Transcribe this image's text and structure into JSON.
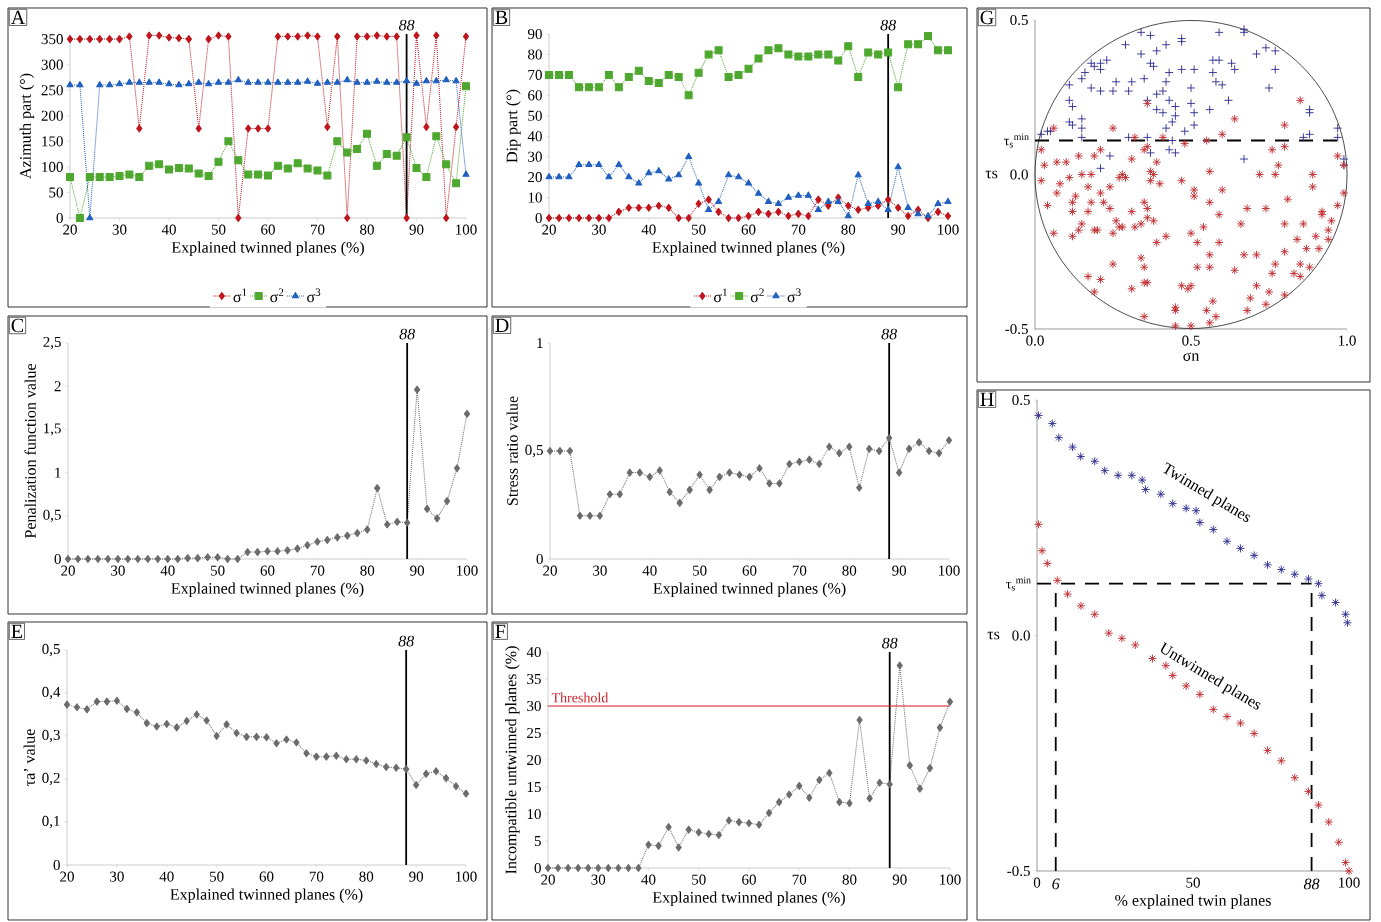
{
  "chart_data": [
    {
      "type": "line",
      "title": "A",
      "xlabel": "Explained twinned planes (%)",
      "ylabel": "Azimuth part (°)",
      "x": [
        20,
        22,
        24,
        26,
        28,
        30,
        32,
        34,
        36,
        38,
        40,
        42,
        44,
        46,
        48,
        50,
        52,
        54,
        56,
        58,
        60,
        62,
        64,
        66,
        68,
        70,
        72,
        74,
        76,
        78,
        80,
        82,
        84,
        86,
        88,
        90,
        92,
        94,
        96,
        98,
        100
      ],
      "xlim": [
        20,
        100
      ],
      "ylim": [
        0,
        360
      ],
      "xticks": [
        20,
        30,
        40,
        50,
        60,
        70,
        80,
        90,
        100
      ],
      "yticks": [
        0,
        50,
        100,
        150,
        200,
        250,
        300,
        350
      ],
      "legend": "bottom",
      "line_style": "dotted",
      "series": [
        {
          "name": "σ$^{1}$",
          "color": "#c0141c",
          "marker": "diamond",
          "values": [
            350,
            350,
            350,
            350,
            350,
            350,
            355,
            175,
            357,
            357,
            353,
            352,
            350,
            175,
            350,
            357,
            355,
            0,
            175,
            175,
            175,
            355,
            355,
            355,
            357,
            355,
            178,
            355,
            0,
            355,
            355,
            357,
            355,
            355,
            0,
            357,
            178,
            357,
            0,
            178,
            355
          ]
        },
        {
          "name": "σ$^{2}$",
          "color": "#4ea72e",
          "marker": "square",
          "values": [
            80,
            0,
            80,
            80,
            80,
            82,
            85,
            80,
            102,
            105,
            95,
            98,
            97,
            87,
            82,
            110,
            150,
            113,
            85,
            85,
            83,
            102,
            97,
            107,
            97,
            93,
            83,
            150,
            128,
            135,
            165,
            102,
            125,
            122,
            158,
            98,
            80,
            160,
            105,
            68,
            258
          ]
        },
        {
          "name": "σ$^{3}$",
          "color": "#1f5fbf",
          "marker": "triangle",
          "values": [
            260,
            260,
            0,
            260,
            260,
            262,
            265,
            265,
            265,
            265,
            262,
            260,
            262,
            265,
            262,
            265,
            265,
            270,
            265,
            265,
            265,
            265,
            265,
            265,
            267,
            263,
            265,
            265,
            270,
            265,
            265,
            267,
            265,
            265,
            268,
            263,
            268,
            268,
            270,
            268,
            85
          ]
        }
      ],
      "ref_lines": [
        {
          "axis": "x",
          "value": 88,
          "label": "88"
        }
      ]
    },
    {
      "type": "line",
      "title": "B",
      "xlabel": "Explained twinned planes (%)",
      "ylabel": "Dip part (°)",
      "x": [
        20,
        22,
        24,
        26,
        28,
        30,
        32,
        34,
        36,
        38,
        40,
        42,
        44,
        46,
        48,
        50,
        52,
        54,
        56,
        58,
        60,
        62,
        64,
        66,
        68,
        70,
        72,
        74,
        76,
        78,
        80,
        82,
        84,
        86,
        88,
        90,
        92,
        94,
        96,
        98,
        100
      ],
      "xlim": [
        20,
        100
      ],
      "ylim": [
        0,
        90
      ],
      "xticks": [
        20,
        30,
        40,
        50,
        60,
        70,
        80,
        90,
        100
      ],
      "yticks": [
        0,
        10,
        20,
        30,
        40,
        50,
        60,
        70,
        80,
        90
      ],
      "legend": "bottom",
      "line_style": "dotted",
      "series": [
        {
          "name": "σ$^{1}$",
          "color": "#c0141c",
          "marker": "diamond",
          "values": [
            0,
            0,
            0,
            0,
            0,
            0,
            0,
            3,
            5,
            5,
            5,
            6,
            5,
            0,
            0,
            7,
            9,
            3,
            0,
            0,
            1,
            3,
            2,
            3,
            1,
            2,
            1,
            9,
            6,
            10,
            6,
            4,
            5,
            6,
            9,
            5,
            1,
            4,
            0,
            3,
            1
          ]
        },
        {
          "name": "σ$^{2}$",
          "color": "#4ea72e",
          "marker": "square",
          "values": [
            70,
            70,
            70,
            64,
            64,
            64,
            70,
            64,
            69,
            72,
            67,
            66,
            70,
            69,
            60,
            71,
            80,
            82,
            69,
            70,
            73,
            78,
            82,
            83,
            80,
            79,
            79,
            80,
            80,
            77,
            84,
            69,
            81,
            80,
            81,
            64,
            85,
            85,
            89,
            82,
            82
          ]
        },
        {
          "name": "σ$^{3}$",
          "color": "#1f5fbf",
          "marker": "triangle",
          "values": [
            20,
            20,
            20,
            26,
            26,
            26,
            20,
            26,
            20,
            17,
            22,
            23,
            19,
            21,
            30,
            17,
            4,
            8,
            21,
            20,
            17,
            12,
            8,
            7,
            10,
            11,
            11,
            4,
            8,
            8,
            1,
            21,
            7,
            8,
            4,
            25,
            5,
            2,
            1,
            7,
            8
          ]
        }
      ],
      "ref_lines": [
        {
          "axis": "x",
          "value": 88,
          "label": "88"
        }
      ]
    },
    {
      "type": "line",
      "title": "C",
      "xlabel": "Explained twinned planes (%)",
      "ylabel": "Penalization function value",
      "x": [
        20,
        22,
        24,
        26,
        28,
        30,
        32,
        34,
        36,
        38,
        40,
        42,
        44,
        46,
        48,
        50,
        52,
        54,
        56,
        58,
        60,
        62,
        64,
        66,
        68,
        70,
        72,
        74,
        76,
        78,
        80,
        82,
        84,
        86,
        88,
        90,
        92,
        94,
        96,
        98,
        100
      ],
      "xlim": [
        20,
        100
      ],
      "ylim": [
        0,
        2.5
      ],
      "xticks": [
        20,
        30,
        40,
        50,
        60,
        70,
        80,
        90,
        100
      ],
      "yticks": [
        0,
        {
          "value": 0.5,
          "label": "0,5"
        },
        1,
        {
          "value": 1.5,
          "label": "1,5"
        },
        2,
        {
          "value": 2.5,
          "label": "2,5"
        }
      ],
      "line_style": "dotted",
      "marker": "diamond",
      "series": [
        {
          "color": "#6b6b6b",
          "values": [
            0,
            0,
            0,
            0,
            0,
            0,
            0,
            0,
            0,
            0,
            0,
            0,
            0.01,
            0.01,
            0.02,
            0.02,
            0,
            0,
            0.08,
            0.08,
            0.09,
            0.09,
            0.1,
            0.12,
            0.16,
            0.2,
            0.22,
            0.25,
            0.27,
            0.3,
            0.34,
            0.82,
            0.4,
            0.43,
            0.42,
            1.96,
            0.58,
            0.47,
            0.67,
            1.05,
            1.68
          ]
        }
      ],
      "ref_lines": [
        {
          "axis": "x",
          "value": 88,
          "label": "88"
        }
      ]
    },
    {
      "type": "line",
      "title": "D",
      "xlabel": "Explained twinned planes (%)",
      "ylabel": "Stress ratio value",
      "x": [
        20,
        22,
        24,
        26,
        28,
        30,
        32,
        34,
        36,
        38,
        40,
        42,
        44,
        46,
        48,
        50,
        52,
        54,
        56,
        58,
        60,
        62,
        64,
        66,
        68,
        70,
        72,
        74,
        76,
        78,
        80,
        82,
        84,
        86,
        88,
        90,
        92,
        94,
        96,
        98,
        100
      ],
      "xlim": [
        20,
        100
      ],
      "ylim": [
        0,
        1
      ],
      "xticks": [
        20,
        30,
        40,
        50,
        60,
        70,
        80,
        90,
        100
      ],
      "yticks": [
        0,
        {
          "value": 0.5,
          "label": "0,5"
        },
        1
      ],
      "line_style": "dotted",
      "marker": "diamond",
      "series": [
        {
          "color": "#6b6b6b",
          "values": [
            0.5,
            0.5,
            0.5,
            0.2,
            0.2,
            0.2,
            0.3,
            0.3,
            0.4,
            0.4,
            0.38,
            0.41,
            0.31,
            0.26,
            0.32,
            0.39,
            0.32,
            0.38,
            0.4,
            0.39,
            0.38,
            0.42,
            0.35,
            0.35,
            0.44,
            0.45,
            0.46,
            0.44,
            0.52,
            0.49,
            0.52,
            0.33,
            0.51,
            0.5,
            0.56,
            0.4,
            0.51,
            0.54,
            0.5,
            0.49,
            0.55
          ]
        }
      ],
      "ref_lines": [
        {
          "axis": "x",
          "value": 88,
          "label": "88"
        }
      ]
    },
    {
      "type": "line",
      "title": "E",
      "xlabel": "Explained twinned planes (%)",
      "ylabel": "τa’ value",
      "x": [
        20,
        22,
        24,
        26,
        28,
        30,
        32,
        34,
        36,
        38,
        40,
        42,
        44,
        46,
        48,
        50,
        52,
        54,
        56,
        58,
        60,
        62,
        64,
        66,
        68,
        70,
        72,
        74,
        76,
        78,
        80,
        82,
        84,
        86,
        88,
        90,
        92,
        94,
        96,
        98,
        100
      ],
      "xlim": [
        20,
        100
      ],
      "ylim": [
        0,
        0.5
      ],
      "xticks": [
        20,
        30,
        40,
        50,
        60,
        70,
        80,
        90,
        100
      ],
      "yticks": [
        0,
        {
          "value": 0.1,
          "label": "0,1"
        },
        {
          "value": 0.2,
          "label": "0,2"
        },
        {
          "value": 0.3,
          "label": "0,3"
        },
        {
          "value": 0.4,
          "label": "0,4"
        },
        {
          "value": 0.5,
          "label": "0,5"
        }
      ],
      "line_style": "dotted",
      "marker": "diamond",
      "series": [
        {
          "color": "#6b6b6b",
          "values": [
            0.373,
            0.367,
            0.362,
            0.38,
            0.38,
            0.382,
            0.363,
            0.355,
            0.33,
            0.322,
            0.328,
            0.32,
            0.335,
            0.35,
            0.336,
            0.3,
            0.327,
            0.307,
            0.298,
            0.298,
            0.297,
            0.283,
            0.292,
            0.285,
            0.26,
            0.252,
            0.252,
            0.254,
            0.246,
            0.246,
            0.243,
            0.235,
            0.228,
            0.226,
            0.223,
            0.186,
            0.212,
            0.218,
            0.202,
            0.183,
            0.166
          ]
        }
      ],
      "ref_lines": [
        {
          "axis": "x",
          "value": 88,
          "label": "88"
        }
      ]
    },
    {
      "type": "line",
      "title": "F",
      "xlabel": "Explained twinned planes (%)",
      "ylabel": "Incompatible untwinned planes (%)",
      "x": [
        20,
        22,
        24,
        26,
        28,
        30,
        32,
        34,
        36,
        38,
        40,
        42,
        44,
        46,
        48,
        50,
        52,
        54,
        56,
        58,
        60,
        62,
        64,
        66,
        68,
        70,
        72,
        74,
        76,
        78,
        80,
        82,
        84,
        86,
        88,
        90,
        92,
        94,
        96,
        98,
        100
      ],
      "xlim": [
        20,
        100
      ],
      "ylim": [
        0,
        40
      ],
      "xticks": [
        20,
        30,
        40,
        50,
        60,
        70,
        80,
        90,
        100
      ],
      "yticks": [
        0,
        5,
        10,
        15,
        20,
        25,
        30,
        35,
        40
      ],
      "line_style": "dotted",
      "marker": "diamond",
      "series": [
        {
          "color": "#6b6b6b",
          "values": [
            0,
            0,
            0,
            0,
            0,
            0,
            0,
            0,
            0,
            0,
            4.3,
            4.1,
            7.6,
            3.8,
            7.1,
            6.6,
            6.3,
            6.1,
            8.8,
            8.5,
            8.3,
            8.0,
            10.2,
            12.2,
            13.6,
            15.2,
            13.0,
            16.3,
            17.6,
            12.2,
            12,
            27.4,
            12.9,
            15.8,
            15.5,
            37.5,
            19,
            14.7,
            18.5,
            26,
            30.8
          ]
        }
      ],
      "ref_lines": [
        {
          "axis": "x",
          "value": 88,
          "label": "88"
        },
        {
          "axis": "y",
          "value": 30,
          "label": "Threshold",
          "color": "#d01c24"
        }
      ]
    },
    {
      "type": "scatter",
      "title": "G",
      "xlabel": "σn",
      "ylabel": "τs",
      "xlim": [
        0,
        1
      ],
      "ylim": [
        -0.5,
        0.5
      ],
      "xticks": [
        {
          "value": 0,
          "label": "0.0"
        },
        0.5,
        {
          "value": 1,
          "label": "1.0"
        }
      ],
      "yticks": [
        -0.5,
        {
          "value": 0,
          "label": "0.0"
        },
        0.5
      ],
      "series": [
        {
          "color": "#2b2b8f",
          "marker": "cross",
          "x": [
            0.34,
            0.37,
            0.29,
            0.34,
            0.39,
            0.42,
            0.47,
            0.47,
            0.59,
            0.67,
            0.67,
            0.71,
            0.74,
            0.77,
            0.77,
            0.75,
            0.57,
            0.59,
            0.63,
            0.64,
            0.57,
            0.58,
            0.6,
            0.62,
            0.56,
            0.51,
            0.5,
            0.47,
            0.43,
            0.42,
            0.41,
            0.39,
            0.36,
            0.39,
            0.41,
            0.43,
            0.45,
            0.5,
            0.51,
            0.51,
            0.48,
            0.45,
            0.44,
            0.42,
            0.38,
            0.37,
            0.35,
            0.31,
            0.3,
            0.26,
            0.25,
            0.21,
            0.18,
            0.19,
            0.18,
            0.21,
            0.23,
            0.21,
            0.16,
            0.15,
            0.11,
            0.11,
            0.12,
            0.11,
            0.12,
            0.15,
            0.15,
            0.15,
            0.04,
            0.05,
            0.02,
            0.3,
            0.36,
            0.44,
            0.43,
            0.45,
            0.37,
            0.24,
            0.21,
            0.67,
            0.88,
            0.88,
            0.86,
            0.88,
            0.97,
            0.97,
            0.99,
            0.99
          ],
          "values": [
            0.46,
            0.45,
            0.42,
            0.39,
            0.4,
            0.42,
            0.44,
            0.43,
            0.46,
            0.47,
            0.46,
            0.39,
            0.41,
            0.4,
            0.34,
            0.28,
            0.37,
            0.37,
            0.36,
            0.34,
            0.33,
            0.3,
            0.29,
            0.24,
            0.21,
            0.34,
            0.28,
            0.34,
            0.33,
            0.3,
            0.27,
            0.26,
            0.24,
            0.21,
            0.2,
            0.24,
            0.22,
            0.23,
            0.2,
            0.16,
            0.14,
            0.19,
            0.17,
            0.15,
            0.35,
            0.36,
            0.31,
            0.3,
            0.27,
            0.3,
            0.27,
            0.27,
            0.28,
            0.35,
            0.36,
            0.36,
            0.37,
            0.34,
            0.33,
            0.31,
            0.29,
            0.24,
            0.22,
            0.17,
            0.16,
            0.18,
            0.15,
            0.12,
            0.14,
            0.14,
            0.13,
            0.12,
            0.12,
            0.11,
            0.08,
            0.07,
            0.07,
            0.06,
            0.02,
            0.05,
            0.21,
            0.2,
            0.12,
            0.13,
            0.15,
            0.12,
            0.05,
            0.03
          ]
        },
        {
          "color": "#c0282d",
          "x": [
            0.85,
            0.64,
            0.8,
            0.6,
            0.55,
            0.48,
            0.41,
            0.32,
            0.36,
            0.25,
            0.06,
            0.02,
            0.03,
            0.02,
            0.07,
            0.1,
            0.14,
            0.19,
            0.21,
            0.31,
            0.35,
            0.36,
            0.39,
            0.37,
            0.38,
            0.28,
            0.15,
            0.18,
            0.11,
            0.08,
            0.07,
            0.13,
            0.17,
            0.21,
            0.24,
            0.27,
            0.29,
            0.37,
            0.4,
            0.47,
            0.51,
            0.51,
            0.6,
            0.56,
            0.72,
            0.77,
            0.76,
            0.8,
            0.78,
            0.89,
            0.89,
            0.97,
            0.99,
            0.99,
            0.97,
            0.81,
            0.74,
            0.68,
            0.59,
            0.56,
            0.35,
            0.36,
            0.31,
            0.32,
            0.36,
            0.38,
            0.24,
            0.22,
            0.18,
            0.17,
            0.12,
            0.12,
            0.04,
            0.15,
            0.14,
            0.12,
            0.06,
            0.19,
            0.2,
            0.25,
            0.27,
            0.28,
            0.26,
            0.34,
            0.42,
            0.39,
            0.5,
            0.52,
            0.54,
            0.59,
            0.56,
            0.66,
            0.67,
            0.71,
            0.8,
            0.86,
            0.84,
            0.9,
            0.94,
            0.95,
            0.92,
            0.92,
            0.87,
            0.91,
            0.94,
            0.8,
            0.77,
            0.76,
            0.83,
            0.85,
            0.88,
            0.85,
            0.34,
            0.35,
            0.52,
            0.56,
            0.64,
            0.25,
            0.17,
            0.21,
            0.19,
            0.31,
            0.35,
            0.36,
            0.47,
            0.5,
            0.49,
            0.71,
            0.69,
            0.68,
            0.74,
            0.75,
            0.8,
            0.57,
            0.45,
            0.45,
            0.55,
            0.58,
            0.56,
            0.35,
            0.45,
            0.5
          ],
          "values": [
            0.24,
            0.18,
            0.16,
            0.13,
            0.11,
            0.1,
            0.12,
            0.12,
            0.23,
            0.15,
            0.15,
            0.08,
            0.03,
            -0.02,
            0.04,
            0.04,
            0.06,
            0.06,
            0.08,
            0.05,
            0.08,
            0.09,
            0.04,
            0.01,
            0,
            0,
            0,
            0,
            -0.01,
            -0.03,
            -0.06,
            -0.07,
            -0.04,
            -0.06,
            -0.04,
            -0.01,
            -0.01,
            -0.02,
            -0.03,
            -0.02,
            -0.05,
            -0.07,
            -0.05,
            0.01,
            0,
            0,
            0.08,
            0.09,
            0.03,
            0,
            -0.04,
            0.06,
            0.03,
            -0.06,
            -0.1,
            -0.08,
            -0.11,
            -0.11,
            -0.13,
            -0.09,
            -0.09,
            -0.11,
            -0.12,
            -0.17,
            -0.14,
            -0.15,
            -0.11,
            -0.09,
            -0.09,
            -0.12,
            -0.12,
            -0.09,
            -0.1,
            -0.16,
            -0.18,
            -0.2,
            -0.19,
            -0.18,
            -0.18,
            -0.19,
            -0.17,
            -0.17,
            -0.15,
            -0.16,
            -0.2,
            -0.22,
            -0.19,
            -0.22,
            -0.17,
            -0.22,
            -0.26,
            -0.16,
            -0.26,
            -0.26,
            -0.16,
            -0.16,
            -0.21,
            -0.2,
            -0.18,
            -0.15,
            -0.12,
            -0.13,
            -0.24,
            -0.24,
            -0.21,
            -0.25,
            -0.29,
            -0.32,
            -0.32,
            -0.29,
            -0.3,
            -0.33,
            -0.27,
            -0.3,
            -0.3,
            -0.3,
            -0.31,
            -0.29,
            -0.33,
            -0.34,
            -0.38,
            -0.37,
            -0.35,
            -0.35,
            -0.36,
            -0.36,
            -0.37,
            -0.36,
            -0.4,
            -0.44,
            -0.42,
            -0.38,
            -0.39,
            -0.41,
            -0.43,
            -0.44,
            -0.44,
            -0.46,
            -0.48,
            -0.46,
            -0.49,
            -0.49
          ]
        }
      ],
      "ref_lines": [
        {
          "axis": "y",
          "value": 0.11,
          "label": "τ$_{s}$$^{min}$",
          "line_style": "dashed"
        }
      ]
    },
    {
      "type": "scatter",
      "title": "H",
      "xlabel": "% explained twin planes",
      "ylabel": "τs",
      "xlim": [
        0,
        100
      ],
      "ylim": [
        -0.5,
        0.5
      ],
      "xticks": [
        0,
        50,
        100
      ],
      "yticks": [
        -0.5,
        {
          "value": 0,
          "label": "0.0"
        },
        0.5
      ],
      "series": [
        {
          "name": "Twinned planes",
          "color": "#2b2b8f",
          "x": [
            0.5,
            4.9,
            7,
            11.4,
            14,
            18.5,
            21.7,
            26,
            30.4,
            33.7,
            34.8,
            39.7,
            43.5,
            47.8,
            51,
            52.2,
            56.5,
            60.9,
            65.2,
            69.6,
            73.9,
            78.3,
            82.6,
            87,
            90.2,
            91.3,
            95.7,
            98.9,
            99.5
          ],
          "values": [
            0.467,
            0.45,
            0.42,
            0.4,
            0.38,
            0.37,
            0.35,
            0.34,
            0.34,
            0.33,
            0.31,
            0.3,
            0.28,
            0.27,
            0.265,
            0.24,
            0.225,
            0.2,
            0.185,
            0.17,
            0.15,
            0.14,
            0.13,
            0.12,
            0.11,
            0.085,
            0.07,
            0.045,
            0.027
          ]
        },
        {
          "name": "Untwinned planes",
          "color": "#c0282d",
          "x": [
            0.5,
            1.6,
            3.3,
            6.5,
            9.8,
            14.1,
            18.5,
            23,
            27.2,
            31.5,
            37,
            41.3,
            43.5,
            47.8,
            52.2,
            56.5,
            60.9,
            65.2,
            69.6,
            73.9,
            78.3,
            82.6,
            87,
            90.2,
            93.5,
            96.7,
            98.9,
            100
          ],
          "values": [
            0.236,
            0.18,
            0.153,
            0.117,
            0.088,
            0.063,
            0.045,
            0.005,
            -0.006,
            -0.02,
            -0.049,
            -0.064,
            -0.085,
            -0.107,
            -0.125,
            -0.157,
            -0.172,
            -0.186,
            -0.208,
            -0.244,
            -0.266,
            -0.302,
            -0.331,
            -0.36,
            -0.396,
            -0.439,
            -0.482,
            -0.5
          ]
        }
      ],
      "ref_lines": [
        {
          "axis": "y",
          "value": 0.11,
          "label": "τ$_{s}$$^{min}$",
          "line_style": "dashed"
        },
        {
          "axis": "x",
          "value": 6,
          "label": "6",
          "line_style": "dashed"
        },
        {
          "axis": "x",
          "value": 88,
          "label": "88",
          "line_style": "dashed"
        }
      ]
    }
  ]
}
